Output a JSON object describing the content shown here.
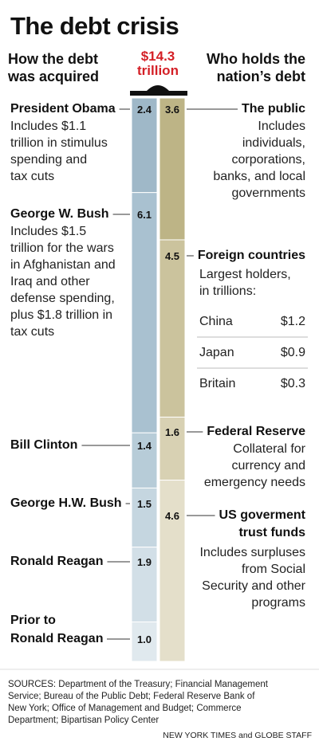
{
  "title": "The debt crisis",
  "left_heading": [
    "How the debt",
    "was acquired"
  ],
  "right_heading": [
    "Who holds the",
    "nation’s debt"
  ],
  "total": [
    "$14.3",
    "trillion"
  ],
  "chart_data": {
    "type": "stacked-bar",
    "unit": "trillions of dollars",
    "total": 14.3,
    "bars": [
      {
        "name": "How the debt was acquired",
        "segments": [
          {
            "label": "President Obama",
            "value": 2.4,
            "note": [
              "Includes $1.1",
              "trillion in stimulus",
              "spending and",
              "tax cuts"
            ]
          },
          {
            "label": "George W. Bush",
            "value": 6.1,
            "note": [
              "Includes $1.5",
              "trillion for the wars",
              "in Afghanistan and",
              "Iraq and other",
              "defense spending,",
              "plus $1.8 trillion in",
              "tax cuts"
            ]
          },
          {
            "label": "Bill Clinton",
            "value": 1.4,
            "note": []
          },
          {
            "label": "George H.W. Bush",
            "value": 1.5,
            "note": []
          },
          {
            "label": "Ronald Reagan",
            "value": 1.9,
            "note": []
          },
          {
            "label": "Prior to Ronald Reagan",
            "value": 1.0,
            "note": []
          }
        ]
      },
      {
        "name": "Who holds the nation’s debt",
        "segments": [
          {
            "label": "The public",
            "value": 3.6,
            "note": [
              "Includes",
              "individuals,",
              "corporations,",
              "banks, and local",
              "governments"
            ]
          },
          {
            "label": "Foreign countries",
            "value": 4.5,
            "note": [
              "Largest holders,",
              "in trillions:"
            ]
          },
          {
            "label": "Federal Reserve",
            "value": 1.6,
            "note": [
              "Collateral for",
              "currency and",
              "emergency needs"
            ]
          },
          {
            "label": "US goverment trust funds",
            "value": 4.6,
            "note": [
              "Includes surpluses",
              "from Social",
              "Security and other",
              "programs"
            ]
          }
        ]
      }
    ],
    "foreign_holders": [
      {
        "country": "China",
        "amount": "$1.2"
      },
      {
        "country": "Japan",
        "amount": "$0.9"
      },
      {
        "country": "Britain",
        "amount": "$0.3"
      }
    ]
  },
  "colors": {
    "left_bar": [
      "#9fb8c8",
      "#a9c1d0",
      "#b7ccd8",
      "#c5d6e0",
      "#d2dfe7",
      "#e0e9ee"
    ],
    "right_bar": [
      "#bdb486",
      "#cbc39d",
      "#d8d1b3",
      "#e4dfca"
    ],
    "total_text": "#d41f26"
  },
  "sources": [
    "SOURCES: Department of the Treasury; Financial Management",
    "Service; Bureau of the Public Debt; Federal Reserve Bank of",
    "New York; Office of Management and Budget; Commerce",
    "Department; Bipartisan Policy Center"
  ],
  "credit": "NEW YORK TIMES and GLOBE STAFF"
}
